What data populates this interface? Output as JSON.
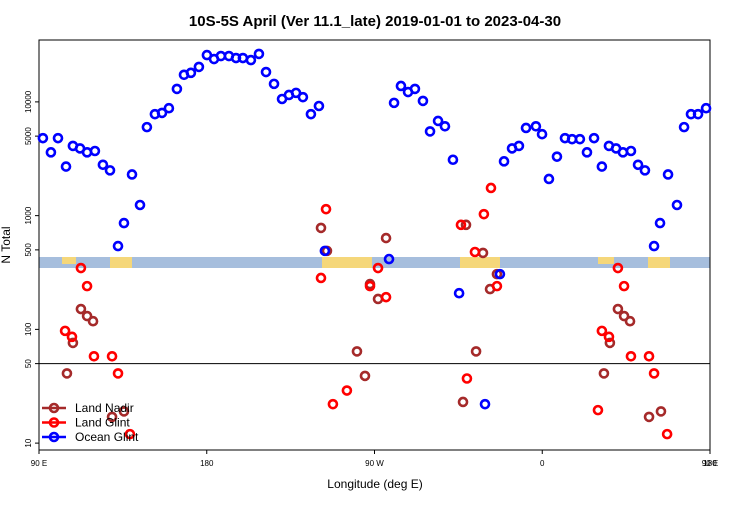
{
  "chart_data": {
    "type": "scatter",
    "title": "10S-5S April (Ver 11.1_late)   2019-01-01 to 2023-04-30",
    "x_label": "Longitude (deg E)",
    "y_label": "N Total",
    "log_y": true,
    "xlim": [
      90,
      450
    ],
    "ylim": [
      8.7,
      35000
    ],
    "xticks": [
      {
        "value": 90,
        "label": "90 E"
      },
      180,
      {
        "value": 270,
        "label": "90 W"
      },
      {
        "value": 360,
        "label": "0"
      },
      {
        "value": 450,
        "label": "90 E"
      },
      {
        "value": 540,
        "label": "180"
      }
    ],
    "yticks": [
      10,
      50,
      100,
      500,
      1000,
      5000,
      10000
    ],
    "hline": 50,
    "legend": "lower left",
    "series": [
      {
        "name": "Land Nadir",
        "color": "#a52a2a",
        "x": [
          105.0,
          108.2,
          112.5,
          115.8,
          119.0,
          129.2,
          135.6,
          241.3,
          244.5,
          260.6,
          264.9,
          276.2,
          271.9,
          267.6,
          317.5,
          319.1,
          324.5,
          328.2,
          332.0,
          335.7,
          393.1,
          396.3,
          400.6,
          403.9,
          407.1,
          417.3,
          423.7
        ],
        "values": [
          41,
          76,
          151,
          131,
          118,
          17,
          19,
          780,
          490,
          64,
          39,
          635,
          185,
          250,
          23,
          830,
          64,
          470,
          226,
          306,
          41,
          76,
          151,
          131,
          118,
          17,
          19
        ]
      },
      {
        "name": "Land Glint",
        "color": "#ff0000",
        "x": [
          104.0,
          107.7,
          112.5,
          115.8,
          119.5,
          129.2,
          132.4,
          138.8,
          241.3,
          244.0,
          247.7,
          255.2,
          267.6,
          271.9,
          276.2,
          316.4,
          319.6,
          323.9,
          328.7,
          332.5,
          335.7,
          389.9,
          392.0,
          395.8,
          400.6,
          403.9,
          407.6,
          417.3,
          420.0,
          427.0
        ],
        "values": [
          97,
          86,
          346,
          240,
          58,
          58,
          41,
          12,
          283,
          1140,
          22,
          29,
          240,
          346,
          192,
          830,
          37,
          479,
          1030,
          1750,
          240,
          19.5,
          97,
          86,
          346,
          240,
          58,
          58,
          41,
          12
        ]
      },
      {
        "name": "Ocean Glint",
        "color": "#0000ff",
        "x": [
          92.1,
          96.4,
          100.2,
          104.5,
          108.2,
          112.0,
          115.8,
          120.0,
          124.3,
          128.1,
          132.4,
          135.6,
          139.9,
          144.2,
          147.9,
          152.2,
          156.0,
          159.7,
          164.0,
          167.8,
          171.5,
          175.8,
          180.1,
          183.9,
          187.6,
          191.9,
          195.7,
          199.4,
          203.7,
          208.0,
          211.8,
          216.1,
          220.4,
          224.1,
          227.9,
          231.6,
          235.9,
          240.2,
          243.4,
          277.8,
          280.5,
          284.2,
          288.0,
          291.7,
          296.0,
          299.8,
          304.1,
          307.8,
          312.1,
          315.4,
          329.3,
          337.3,
          339.5,
          343.8,
          347.5,
          351.3,
          356.6,
          359.9,
          363.6,
          367.9,
          372.2,
          376.0,
          380.2,
          384.0,
          387.8,
          392.0,
          395.8,
          399.6,
          403.3,
          407.6,
          411.4,
          415.1,
          420.0,
          423.2,
          427.5,
          432.3,
          436.1,
          439.8,
          443.6,
          447.9
        ],
        "values": [
          4800,
          3600,
          4800,
          2700,
          4100,
          3900,
          3600,
          3700,
          2800,
          2500,
          540,
          860,
          2300,
          1240,
          6000,
          7800,
          8000,
          8800,
          13000,
          17300,
          18000,
          20300,
          25800,
          23800,
          25300,
          25300,
          24300,
          24300,
          23300,
          26400,
          18300,
          14400,
          10600,
          11500,
          12000,
          11000,
          7800,
          9200,
          490,
          415,
          9800,
          13800,
          12200,
          13000,
          10200,
          5500,
          6800,
          6100,
          3100,
          208,
          22,
          306,
          3000,
          3900,
          4100,
          5900,
          6100,
          5200,
          2100,
          3300,
          4800,
          4700,
          4700,
          3600,
          4800,
          2700,
          4100,
          3900,
          3600,
          3700,
          2800,
          2500,
          540,
          860,
          2300,
          1240,
          6000,
          7800,
          7800,
          8800
        ]
      }
    ]
  }
}
